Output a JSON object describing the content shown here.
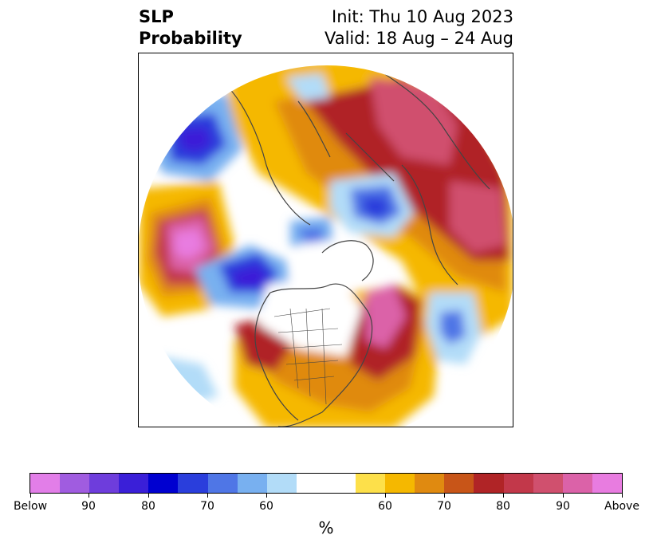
{
  "title": {
    "variable": "SLP",
    "product": "Probability",
    "init": "Init: Thu 10 Aug 2023",
    "valid": "Valid: 18 Aug – 24 Aug"
  },
  "colorbar": {
    "label": "%",
    "colors": [
      "#e27ee8",
      "#a05ce0",
      "#6e3ddc",
      "#3a1fd8",
      "#0000d0",
      "#2a3edc",
      "#4f76e6",
      "#78b0f0",
      "#b2dcf8",
      "#ffffff",
      "#ffffff",
      "#fde04a",
      "#f5b800",
      "#e08a10",
      "#c85518",
      "#b02426",
      "#c2384a",
      "#d0506e",
      "#db62a8",
      "#e87ce0"
    ],
    "tick_labels": [
      "Below",
      "90",
      "80",
      "70",
      "60",
      "60",
      "70",
      "80",
      "90",
      "Above"
    ]
  },
  "colors": {
    "land_lines": "#444444",
    "above_high": "#d0506e",
    "below_high": "#2a2ad0"
  }
}
